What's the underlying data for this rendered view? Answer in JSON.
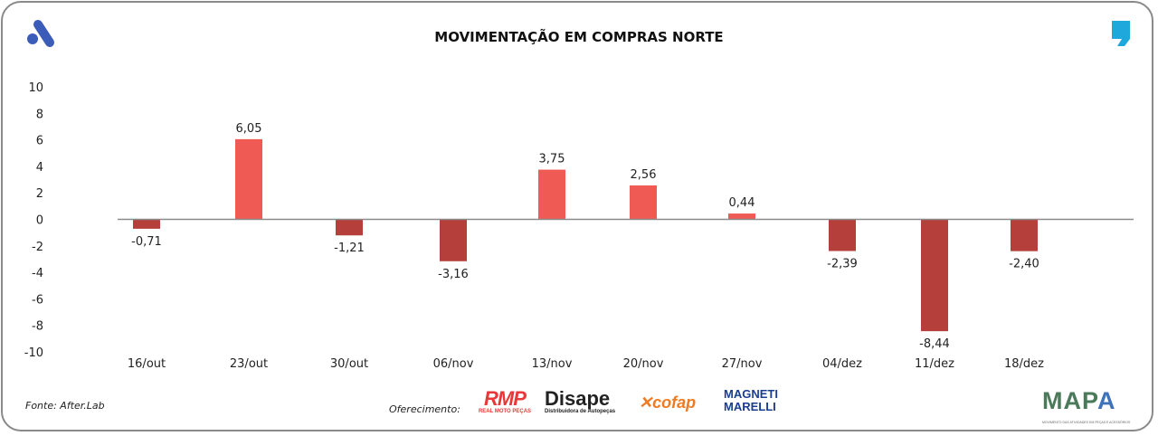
{
  "title": "MOVIMENTAÇÃO EM COMPRAS NORTE",
  "source": "Fonte: After.Lab",
  "sponsors_label": "Oferecimento:",
  "sponsors": [
    "RMP REAL MOTO PEÇAS",
    "Disape Distribuidora de Autopeças",
    "cofap",
    "MAGNETI MARELLI"
  ],
  "brand_logo": "MAPA MOVIMENTO DAS ATIVIDADES EM PEÇAS E ACESSÓRIOS",
  "colors": {
    "positive": "#f05a55",
    "negative": "#b5403b",
    "brand_blue": "#3b5cb8",
    "quote_blue": "#1fa8dc"
  },
  "chart_data": {
    "type": "bar",
    "title": "MOVIMENTAÇÃO EM COMPRAS NORTE",
    "categories": [
      "16/out",
      "23/out",
      "30/out",
      "06/nov",
      "13/nov",
      "20/nov",
      "27/nov",
      "04/dez",
      "11/dez",
      "18/dez"
    ],
    "values": [
      -0.71,
      6.05,
      -1.21,
      -3.16,
      3.75,
      2.56,
      0.44,
      -2.39,
      -8.44,
      -2.4
    ],
    "labels": [
      "-0,71",
      "6,05",
      "-1,21",
      "-3,16",
      "3,75",
      "2,56",
      "0,44",
      "-2,39",
      "-8,44",
      "-2,40"
    ],
    "yticks": [
      "10",
      "8",
      "6",
      "4",
      "2",
      "0",
      "-2",
      "-4",
      "-6",
      "-8",
      "-10"
    ],
    "ylim": [
      -10,
      10
    ],
    "grid": false
  }
}
